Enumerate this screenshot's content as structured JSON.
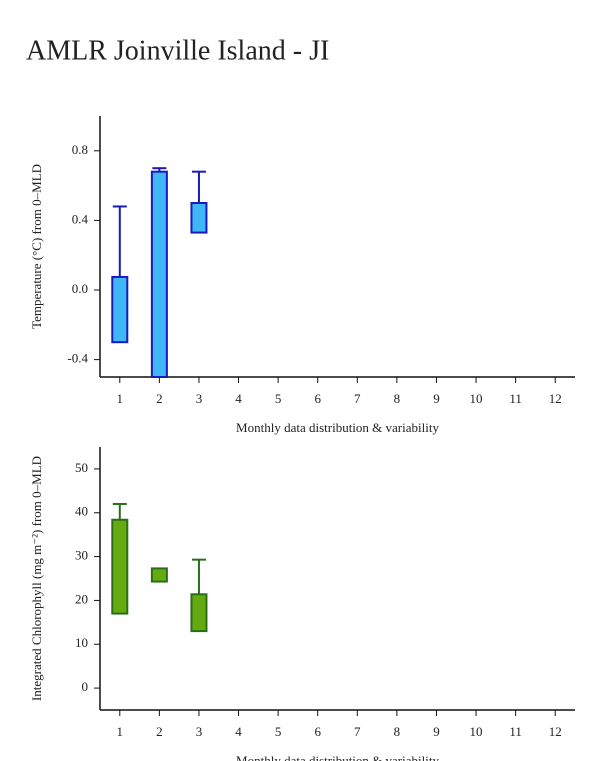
{
  "title": "AMLR Joinville Island - JI",
  "chart_data": [
    {
      "type": "box",
      "ylabel": "Temperature (°C) from 0–MLD",
      "xlabel": "Monthly data distribution & variability",
      "categories": [
        "1",
        "2",
        "3",
        "4",
        "5",
        "6",
        "7",
        "8",
        "9",
        "10",
        "11",
        "12"
      ],
      "ylim": [
        -0.5,
        1.0
      ],
      "yticks": [
        -0.4,
        {
          "value": 0,
          "label": "0.0"
        },
        0.4,
        0.8
      ],
      "fill": "#3fb6f5",
      "stroke": "#1a1ab8",
      "box_low": [
        -0.3,
        -0.5,
        0.33,
        null,
        null,
        null,
        null,
        null,
        null,
        null,
        null,
        null
      ],
      "box_high": [
        0.075,
        0.68,
        0.5,
        null,
        null,
        null,
        null,
        null,
        null,
        null,
        null,
        null
      ],
      "whisker_high": [
        0.48,
        0.7,
        0.68,
        null,
        null,
        null,
        null,
        null,
        null,
        null,
        null,
        null
      ]
    },
    {
      "type": "box",
      "ylabel": "Integrated Chlorophyll (mg m⁻²) from 0–MLD",
      "xlabel": "Monthly data distribution & variability",
      "categories": [
        "1",
        "2",
        "3",
        "4",
        "5",
        "6",
        "7",
        "8",
        "9",
        "10",
        "11",
        "12"
      ],
      "ylim": [
        -5,
        55
      ],
      "yticks": [
        0,
        10,
        20,
        30,
        40,
        50
      ],
      "fill": "#66aa11",
      "stroke": "#2a6e1a",
      "box_low": [
        17,
        24.3,
        13,
        null,
        null,
        null,
        null,
        null,
        null,
        null,
        null,
        null
      ],
      "box_high": [
        38.4,
        27.3,
        21.4,
        null,
        null,
        null,
        null,
        null,
        null,
        null,
        null,
        null
      ],
      "whisker_high": [
        42,
        null,
        29.3,
        null,
        null,
        null,
        null,
        null,
        null,
        null,
        null,
        null
      ]
    }
  ]
}
